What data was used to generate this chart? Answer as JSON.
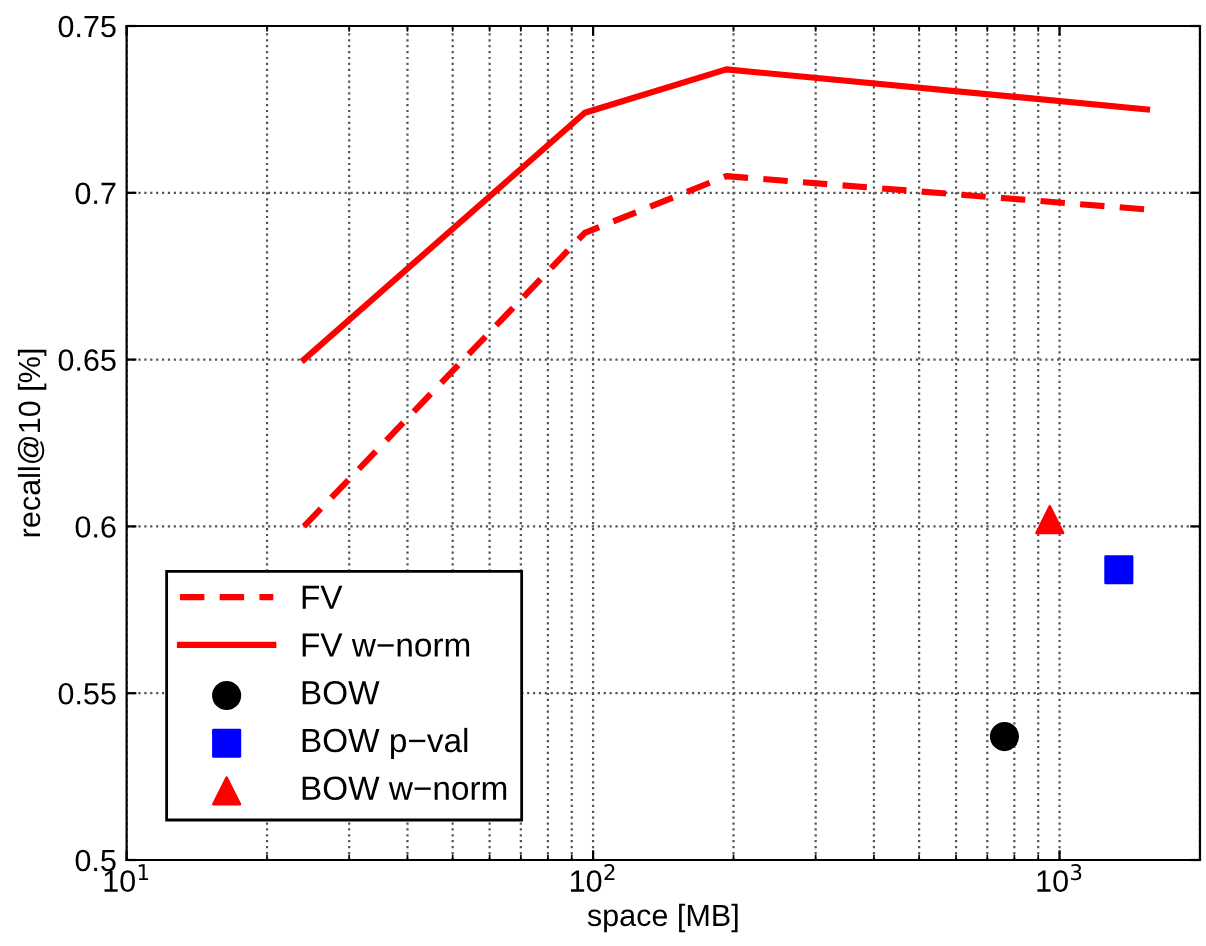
{
  "chart_data": {
    "type": "line",
    "xlabel": "space [MB]",
    "ylabel": "recall@10 [%]",
    "log": "x",
    "grid": true,
    "legend": "bottom left",
    "xlim": [
      10,
      2000
    ],
    "xticks": [
      {
        "value": 10,
        "label": "10$^{1}$"
      },
      {
        "value": 100,
        "label": "10$^{2}$"
      },
      {
        "value": 1000,
        "label": "10$^{3}$"
      }
    ],
    "ylim": [
      0.5,
      0.75
    ],
    "yticks": [
      0.5,
      0.55,
      0.6,
      0.65,
      0.7,
      0.75
    ],
    "series": [
      {
        "name": "FV",
        "color": "#ff0000",
        "line_style": "dashed",
        "marker": "none",
        "x": [
          24,
          96,
          193,
          1540
        ],
        "values": [
          0.6,
          0.688,
          0.705,
          0.695
        ]
      },
      {
        "name": "FV w−norm",
        "color": "#ff0000",
        "line_style": "solid",
        "marker": "none",
        "x": [
          24,
          96,
          193,
          1540
        ],
        "values": [
          0.65,
          0.724,
          0.737,
          0.725
        ]
      },
      {
        "name": "BOW",
        "type": "scatter",
        "color": "#000000",
        "marker": "circle",
        "x": [
          762
        ],
        "values": [
          0.537
        ]
      },
      {
        "name": "BOW p−val",
        "type": "scatter",
        "color": "#0000ff",
        "marker": "square",
        "x": [
          1340
        ],
        "values": [
          0.587
        ]
      },
      {
        "name": "BOW w−norm",
        "type": "scatter",
        "color": "#ff0000",
        "marker": "triangle",
        "x": [
          953
        ],
        "values": [
          0.602
        ]
      }
    ]
  }
}
